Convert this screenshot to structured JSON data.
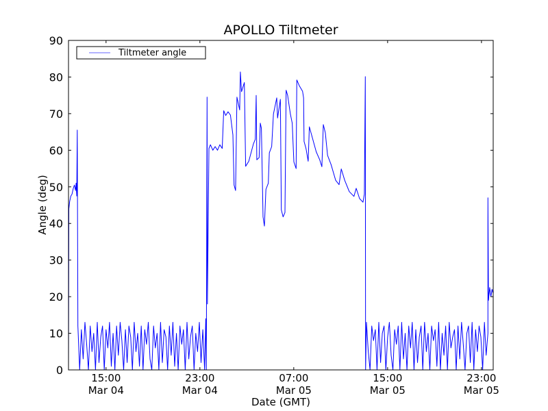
{
  "chart_data": {
    "type": "line",
    "title": "APOLLO Tiltmeter",
    "xlabel": "Date (GMT)",
    "ylabel": "Angle (deg)",
    "x_units": "hours since Mar 04 00:00 GMT",
    "xlim": [
      11.8,
      48.0
    ],
    "ylim": [
      0,
      90
    ],
    "yticks": [
      0,
      10,
      20,
      30,
      40,
      50,
      60,
      70,
      80,
      90
    ],
    "xticks": [
      {
        "value": 15,
        "time": "15:00",
        "date": "Mar 04"
      },
      {
        "value": 23,
        "time": "23:00",
        "date": "Mar 04"
      },
      {
        "value": 31,
        "time": "07:00",
        "date": "Mar 05"
      },
      {
        "value": 39,
        "time": "15:00",
        "date": "Mar 05"
      },
      {
        "value": 47,
        "time": "23:00",
        "date": "Mar 05"
      }
    ],
    "grid": false,
    "legend": {
      "position": "top-left",
      "entries": [
        "Tiltmeter angle"
      ]
    },
    "colors": {
      "line": "#0000ff",
      "legend_line": "#9999ff",
      "axes": "#000000"
    },
    "series": [
      {
        "name": "Tiltmeter angle",
        "segments": [
          {
            "points": [
              [
                11.8,
                0
              ],
              [
                11.83,
                44
              ],
              [
                11.9,
                46
              ],
              [
                12.0,
                47.5
              ],
              [
                12.1,
                48
              ],
              [
                12.2,
                49.5
              ],
              [
                12.3,
                50.5
              ],
              [
                12.4,
                49
              ],
              [
                12.45,
                51
              ],
              [
                12.5,
                47.5
              ],
              [
                12.55,
                65.5
              ]
            ]
          },
          {
            "start": 12.6,
            "step": 0.15,
            "values": [
              12,
              0,
              11,
              3,
              13,
              7,
              0,
              12,
              5,
              10,
              0,
              13,
              2,
              9,
              12,
              0,
              11,
              6,
              13,
              1,
              10,
              0,
              12,
              4,
              13,
              8,
              0,
              11,
              2,
              12,
              9,
              0,
              13,
              5,
              10,
              1,
              12,
              0,
              11,
              7,
              13,
              3,
              0,
              12,
              6,
              10,
              0,
              13,
              2,
              11,
              9,
              0,
              12,
              4,
              13,
              1,
              10,
              0,
              12,
              7,
              11,
              0,
              13,
              3,
              9,
              12,
              0,
              10,
              5,
              13,
              2,
              11,
              0
            ]
          },
          {
            "points": [
              [
                23.5,
                14
              ],
              [
                23.55,
                0
              ],
              [
                23.61,
                74.5
              ],
              [
                23.64,
                18
              ],
              [
                23.77,
                60.5
              ],
              [
                23.9,
                61.5
              ],
              [
                24.1,
                60
              ],
              [
                24.3,
                61
              ],
              [
                24.5,
                60
              ],
              [
                24.7,
                61.5
              ],
              [
                24.9,
                60.5
              ],
              [
                25.03,
                70.8
              ],
              [
                25.2,
                69.5
              ],
              [
                25.4,
                70.5
              ],
              [
                25.6,
                69.6
              ],
              [
                25.81,
                64.2
              ],
              [
                25.91,
                50.5
              ],
              [
                26.04,
                49
              ],
              [
                26.16,
                74.5
              ],
              [
                26.39,
                71
              ],
              [
                26.45,
                81.4
              ],
              [
                26.55,
                76
              ],
              [
                26.79,
                78.5
              ],
              [
                26.9,
                55.6
              ],
              [
                27.17,
                57
              ],
              [
                27.56,
                61.7
              ],
              [
                27.72,
                63
              ],
              [
                27.8,
                75
              ],
              [
                27.85,
                57.4
              ],
              [
                28.05,
                58
              ],
              [
                28.15,
                67.4
              ],
              [
                28.24,
                66
              ],
              [
                28.38,
                41.8
              ],
              [
                28.5,
                39.3
              ],
              [
                28.63,
                49.3
              ],
              [
                28.83,
                51
              ],
              [
                28.92,
                59.3
              ],
              [
                29.12,
                61
              ],
              [
                29.27,
                69.9
              ],
              [
                29.55,
                74.3
              ],
              [
                29.62,
                68.8
              ],
              [
                29.86,
                73.9
              ],
              [
                29.94,
                43.7
              ],
              [
                30.09,
                41.8
              ],
              [
                30.25,
                43
              ],
              [
                30.35,
                76.4
              ],
              [
                30.48,
                75
              ],
              [
                30.71,
                69.9
              ],
              [
                30.87,
                67.4
              ],
              [
                31.01,
                56.8
              ],
              [
                31.2,
                55
              ],
              [
                31.26,
                79.2
              ],
              [
                31.46,
                77.7
              ],
              [
                31.75,
                76.1
              ],
              [
                31.84,
                74.3
              ],
              [
                31.88,
                62.4
              ],
              [
                32.04,
                60.5
              ],
              [
                32.23,
                57
              ],
              [
                32.33,
                66.4
              ],
              [
                32.62,
                63
              ],
              [
                32.91,
                59.6
              ],
              [
                33.21,
                57.4
              ],
              [
                33.4,
                55.5
              ],
              [
                33.52,
                67
              ],
              [
                33.69,
                64.8
              ],
              [
                33.88,
                58.6
              ],
              [
                34.18,
                56.1
              ],
              [
                34.57,
                51.8
              ],
              [
                34.86,
                50.6
              ],
              [
                35.05,
                54.9
              ],
              [
                35.34,
                51.8
              ],
              [
                35.73,
                48.7
              ],
              [
                36.13,
                47.4
              ],
              [
                36.32,
                49.6
              ],
              [
                36.61,
                46.8
              ],
              [
                36.9,
                45.8
              ],
              [
                37.02,
                48
              ],
              [
                37.1,
                80.1
              ],
              [
                37.12,
                0
              ]
            ]
          },
          {
            "start": 37.2,
            "step": 0.15,
            "values": [
              13,
              5,
              0,
              12,
              8,
              11,
              0,
              13,
              2,
              10,
              12,
              0,
              9,
              13,
              4,
              0,
              11,
              7,
              12,
              0,
              13,
              3,
              10,
              0,
              12,
              6,
              13,
              0,
              11,
              2,
              9,
              12,
              0,
              13,
              5,
              10,
              0,
              12,
              8,
              11,
              1,
              13,
              0,
              10,
              4,
              12,
              0,
              13,
              6,
              9,
              11,
              0,
              12,
              3,
              13,
              7,
              0,
              10,
              12,
              2,
              13,
              0,
              11,
              5,
              12,
              9,
              0,
              13,
              4,
              10
            ]
          },
          {
            "points": [
              [
                47.55,
                47
              ],
              [
                47.6,
                19
              ],
              [
                47.7,
                22.5
              ],
              [
                47.8,
                20
              ],
              [
                47.9,
                22
              ],
              [
                47.99,
                21
              ]
            ]
          }
        ]
      }
    ]
  }
}
